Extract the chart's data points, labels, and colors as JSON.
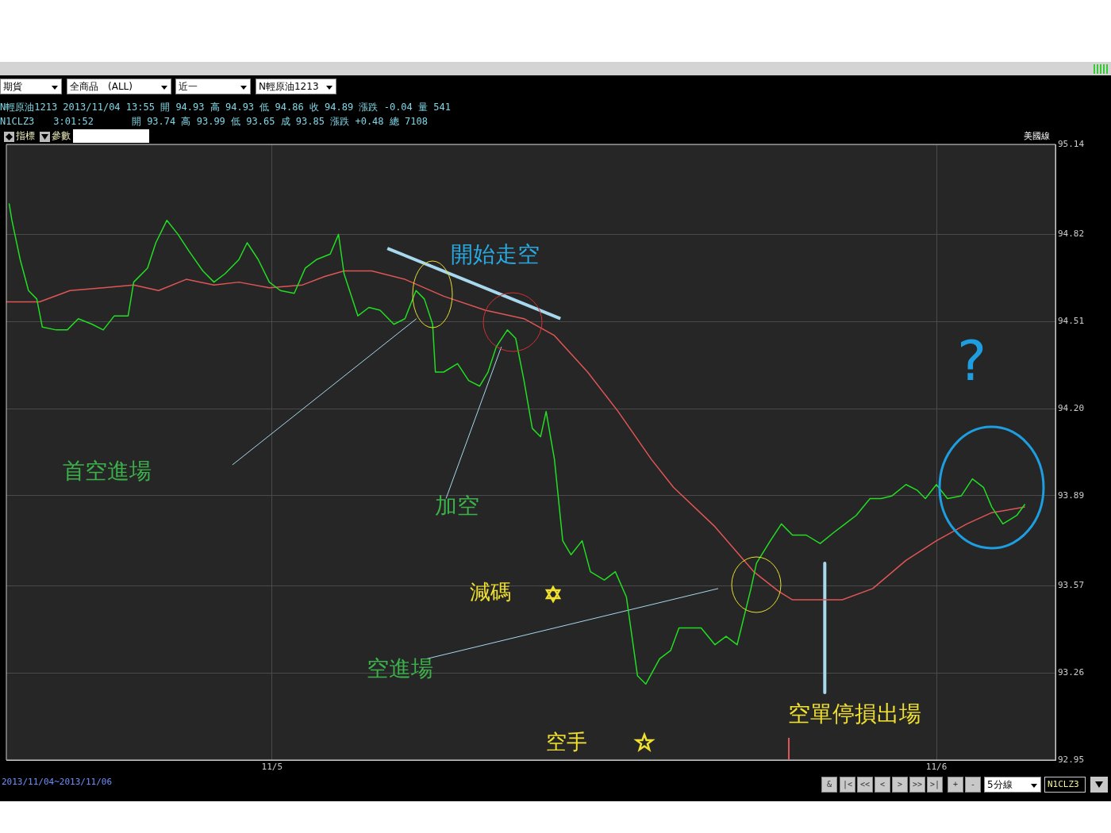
{
  "chart_data": {
    "type": "line",
    "xlim": [
      "2013-11-04T14:24",
      "2013-11-06T04:18"
    ],
    "ylim": [
      92.95,
      95.14
    ],
    "xticks": [
      {
        "value": "2013-11-05",
        "label": "11/5"
      },
      {
        "value": "2013-11-06",
        "label": "11/6"
      }
    ],
    "yticks": [
      92.95,
      93.26,
      93.57,
      93.89,
      {
        "value": 94.2,
        "label": "94.20"
      },
      94.51,
      94.82,
      95.14
    ],
    "grid": true,
    "legend": false,
    "marker": "none",
    "line_style": "solid",
    "series": [
      {
        "color": "#22dd22",
        "x": [
          "2013-11-04T14:30",
          "2013-11-04T14:36",
          "2013-11-04T14:54",
          "2013-11-04T15:12",
          "2013-11-04T15:30",
          "2013-11-04T15:42",
          "2013-11-04T16:12",
          "2013-11-04T16:36",
          "2013-11-04T17:00",
          "2013-11-04T17:30",
          "2013-11-04T17:54",
          "2013-11-04T18:18",
          "2013-11-04T18:48",
          "2013-11-04T19:00",
          "2013-11-04T19:30",
          "2013-11-04T19:48",
          "2013-11-04T20:12",
          "2013-11-04T20:36",
          "2013-11-04T21:00",
          "2013-11-04T21:30",
          "2013-11-04T21:54",
          "2013-11-04T22:18",
          "2013-11-04T22:48",
          "2013-11-04T23:06",
          "2013-11-04T23:30",
          "2013-11-04T23:54",
          "2013-11-05T00:18",
          "2013-11-05T00:48",
          "2013-11-05T01:12",
          "2013-11-05T01:36",
          "2013-11-05T02:06",
          "2013-11-05T02:24",
          "2013-11-05T02:36",
          "2013-11-05T03:06",
          "2013-11-05T03:30",
          "2013-11-05T03:54",
          "2013-11-05T04:24",
          "2013-11-05T04:48",
          "2013-11-05T05:12",
          "2013-11-05T05:30",
          "2013-11-05T05:48",
          "2013-11-05T05:54",
          "2013-11-05T06:12",
          "2013-11-05T06:42",
          "2013-11-05T07:06",
          "2013-11-05T07:30",
          "2013-11-05T07:48",
          "2013-11-05T08:06",
          "2013-11-05T08:30",
          "2013-11-05T08:48",
          "2013-11-05T09:06",
          "2013-11-05T09:24",
          "2013-11-05T09:42",
          "2013-11-05T09:54",
          "2013-11-05T10:12",
          "2013-11-05T10:30",
          "2013-11-05T10:48",
          "2013-11-05T11:12",
          "2013-11-05T11:30",
          "2013-11-05T12:00",
          "2013-11-05T12:24",
          "2013-11-05T12:48",
          "2013-11-05T13:12",
          "2013-11-05T13:30",
          "2013-11-05T14:00",
          "2013-11-05T14:24",
          "2013-11-05T14:42",
          "2013-11-05T15:06",
          "2013-11-05T15:30",
          "2013-11-05T16:00",
          "2013-11-05T16:24",
          "2013-11-05T16:48",
          "2013-11-05T17:18",
          "2013-11-05T17:30",
          "2013-11-05T18:00",
          "2013-11-05T18:24",
          "2013-11-05T18:48",
          "2013-11-05T19:18",
          "2013-11-05T19:48",
          "2013-11-05T20:18",
          "2013-11-05T20:42",
          "2013-11-05T21:06",
          "2013-11-05T21:36",
          "2013-11-05T22:00",
          "2013-11-05T22:24",
          "2013-11-05T22:54",
          "2013-11-05T23:18",
          "2013-11-05T23:36",
          "2013-11-06T00:00",
          "2013-11-06T00:24",
          "2013-11-06T00:54",
          "2013-11-06T01:18",
          "2013-11-06T01:42",
          "2013-11-06T02:00",
          "2013-11-06T02:24",
          "2013-11-06T02:54",
          "2013-11-06T03:12"
        ],
        "values": [
          94.93,
          94.87,
          94.73,
          94.62,
          94.59,
          94.49,
          94.48,
          94.48,
          94.52,
          94.5,
          94.48,
          94.53,
          94.53,
          94.65,
          94.7,
          94.79,
          94.87,
          94.82,
          94.76,
          94.69,
          94.65,
          94.68,
          94.73,
          94.79,
          94.73,
          94.65,
          94.62,
          94.61,
          94.7,
          94.73,
          94.75,
          94.82,
          94.68,
          94.53,
          94.56,
          94.55,
          94.5,
          94.52,
          94.62,
          94.59,
          94.5,
          94.33,
          94.33,
          94.36,
          94.3,
          94.28,
          94.33,
          94.42,
          94.48,
          94.45,
          94.3,
          94.13,
          94.1,
          94.19,
          94.02,
          93.73,
          93.68,
          93.73,
          93.62,
          93.59,
          93.62,
          93.53,
          93.25,
          93.22,
          93.31,
          93.34,
          93.42,
          93.42,
          93.42,
          93.36,
          93.39,
          93.36,
          93.56,
          93.65,
          93.73,
          93.79,
          93.75,
          93.75,
          93.72,
          93.76,
          93.79,
          93.82,
          93.88,
          93.88,
          93.89,
          93.93,
          93.91,
          93.88,
          93.93,
          93.88,
          93.89,
          93.95,
          93.92,
          93.85,
          93.79,
          93.82,
          93.86
        ]
      },
      {
        "color": "#e05555",
        "x": [
          "2013-11-04T14:24",
          "2013-11-04T15:36",
          "2013-11-04T16:42",
          "2013-11-04T17:54",
          "2013-11-04T19:00",
          "2013-11-04T19:54",
          "2013-11-04T20:54",
          "2013-11-04T21:54",
          "2013-11-04T22:48",
          "2013-11-04T23:54",
          "2013-11-05T01:06",
          "2013-11-05T01:54",
          "2013-11-05T02:36",
          "2013-11-05T03:36",
          "2013-11-05T04:48",
          "2013-11-05T06:12",
          "2013-11-05T07:42",
          "2013-11-05T09:06",
          "2013-11-05T10:12",
          "2013-11-05T11:24",
          "2013-11-05T12:30",
          "2013-11-05T13:42",
          "2013-11-05T14:30",
          "2013-11-05T16:00",
          "2013-11-05T17:24",
          "2013-11-05T18:18",
          "2013-11-05T18:48",
          "2013-11-05T19:42",
          "2013-11-05T20:36",
          "2013-11-05T21:42",
          "2013-11-05T22:54",
          "2013-11-06T00:00",
          "2013-11-06T01:06",
          "2013-11-06T02:00",
          "2013-11-06T03:12"
        ],
        "values": [
          94.58,
          94.58,
          94.62,
          94.63,
          94.64,
          94.62,
          94.66,
          94.64,
          94.65,
          94.63,
          94.64,
          94.67,
          94.69,
          94.69,
          94.66,
          94.6,
          94.55,
          94.52,
          94.46,
          94.33,
          94.19,
          94.02,
          93.92,
          93.78,
          93.62,
          93.55,
          93.52,
          93.52,
          93.52,
          93.56,
          93.66,
          93.73,
          93.79,
          93.83,
          93.85
        ]
      },
      {
        "type": "line",
        "color": "#a8d8ee",
        "x": [
          "2013-11-05T04:10",
          "2013-11-05T10:25"
        ],
        "values": [
          94.77,
          94.52
        ]
      },
      {
        "type": "line",
        "color": "#a8d8ee",
        "x": [
          "2013-11-05T19:58",
          "2013-11-05T19:58"
        ],
        "values": [
          93.65,
          93.19
        ]
      },
      {
        "type": "line",
        "color": "#a8d8ee",
        "x": [
          "2013-11-04T22:34",
          "2013-11-05T05:13"
        ],
        "values": [
          94.0,
          94.52
        ]
      },
      {
        "type": "line",
        "color": "#a8d8ee",
        "x": [
          "2013-11-05T06:17",
          "2013-11-05T08:17"
        ],
        "values": [
          93.88,
          94.42
        ]
      },
      {
        "type": "line",
        "color": "#a8d8ee",
        "x": [
          "2013-11-05T05:35",
          "2013-11-05T16:07"
        ],
        "values": [
          93.31,
          93.56
        ]
      }
    ],
    "annotations": [
      "開始走空",
      "首空進場",
      "加空",
      "減碼",
      "空進場",
      "空手",
      "空單停損出場",
      "?",
      "期貨",
      "全商品　(ALL)",
      "近一",
      "N輕原油1213",
      "N輕原油1213 2013/11/04 13:55 開 94.93 高 94.93 低 94.86 收 94.89 漲跌 -0.04 量 541",
      "N1CLZ3　　3:01:52　　　　開 93.74 高 93.99 低 93.65 成 93.85 漲跌 +0.48 總 7108",
      "指標",
      "參數",
      "美國線",
      "2013/11/04~2013/11/06",
      "&",
      "|<",
      "<<",
      "<",
      ">",
      ">>",
      ">|",
      "+",
      "-",
      "5分線",
      "N1CLZ3"
    ]
  }
}
